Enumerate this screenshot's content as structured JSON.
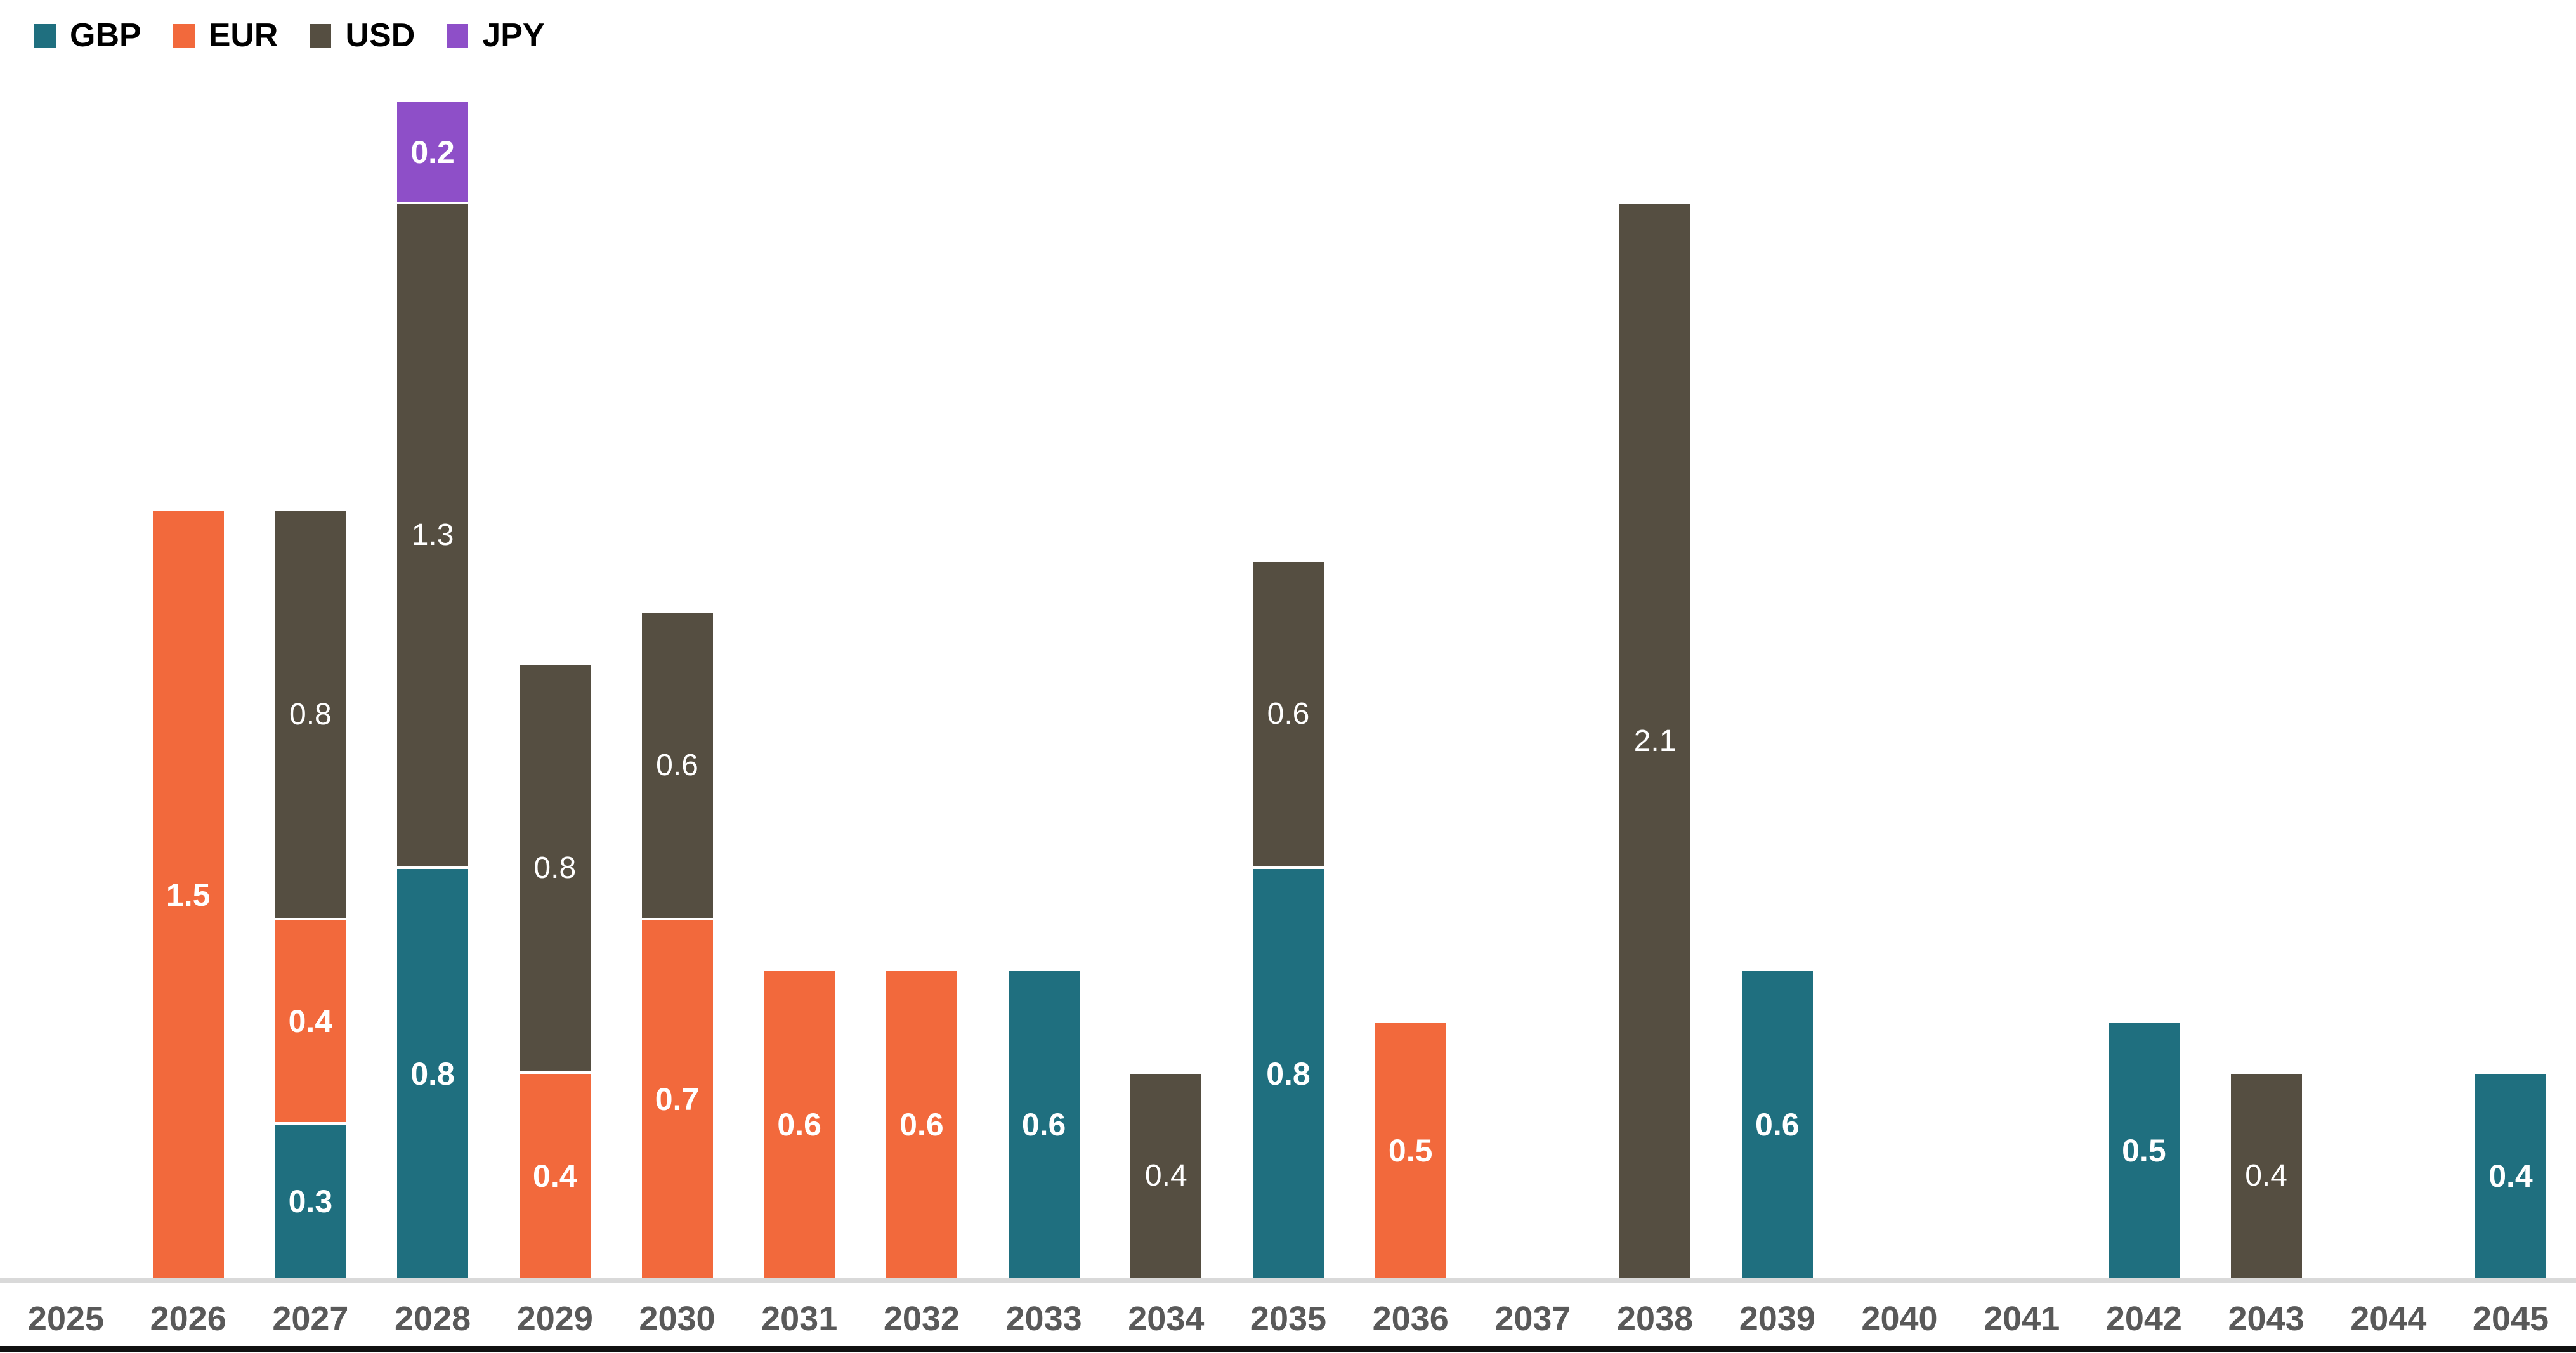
{
  "chart": {
    "background": "#FFFFFF",
    "axis_line_color": "#D9D9D9",
    "axis_label_color": "#595959",
    "bottom_border_color": "#111111",
    "value_label_color": "#FFFFFF"
  },
  "legend": {
    "position": "top-left",
    "items": [
      {
        "label": "GBP",
        "color": "#1F6F7F"
      },
      {
        "label": "EUR",
        "color": "#F2693C"
      },
      {
        "label": "USD",
        "color": "#554E41"
      },
      {
        "label": "JPY",
        "color": "#8E4FC8"
      }
    ]
  },
  "chart_data": {
    "type": "bar",
    "stacked": true,
    "orientation": "vertical",
    "title": "",
    "xlabel": "",
    "ylabel": "",
    "gridlines": false,
    "y_axis_visible": false,
    "legend_position": "top-left",
    "value_label_position": "inside-center",
    "value_label_format": "one-decimal",
    "ylim": [
      0,
      2.35
    ],
    "categories": [
      "2025",
      "2026",
      "2027",
      "2028",
      "2029",
      "2030",
      "2031",
      "2032",
      "2033",
      "2034",
      "2035",
      "2036",
      "2037",
      "2038",
      "2039",
      "2040",
      "2041",
      "2042",
      "2043",
      "2044",
      "2045"
    ],
    "series": [
      {
        "name": "GBP",
        "color": "#1F6F7F",
        "values": [
          0,
          0,
          0.3,
          0.8,
          0,
          0,
          0,
          0,
          0.6,
          0,
          0.8,
          0,
          0,
          0,
          0.6,
          0,
          0,
          0.5,
          0,
          0,
          0.4
        ]
      },
      {
        "name": "EUR",
        "color": "#F2693C",
        "values": [
          0,
          1.5,
          0.4,
          0,
          0.4,
          0.7,
          0.6,
          0.6,
          0,
          0,
          0,
          0.5,
          0,
          0,
          0,
          0,
          0,
          0,
          0,
          0,
          0
        ]
      },
      {
        "name": "USD",
        "color": "#554E41",
        "values": [
          0,
          0,
          0.8,
          1.3,
          0.8,
          0.6,
          0,
          0,
          0,
          0.4,
          0.6,
          0,
          0,
          2.1,
          0,
          0,
          0,
          0,
          0.4,
          0,
          0
        ]
      },
      {
        "name": "JPY",
        "color": "#8E4FC8",
        "values": [
          0,
          0,
          0,
          0.2,
          0,
          0,
          0,
          0,
          0,
          0,
          0,
          0,
          0,
          0,
          0,
          0,
          0,
          0,
          0,
          0,
          0
        ]
      }
    ]
  }
}
